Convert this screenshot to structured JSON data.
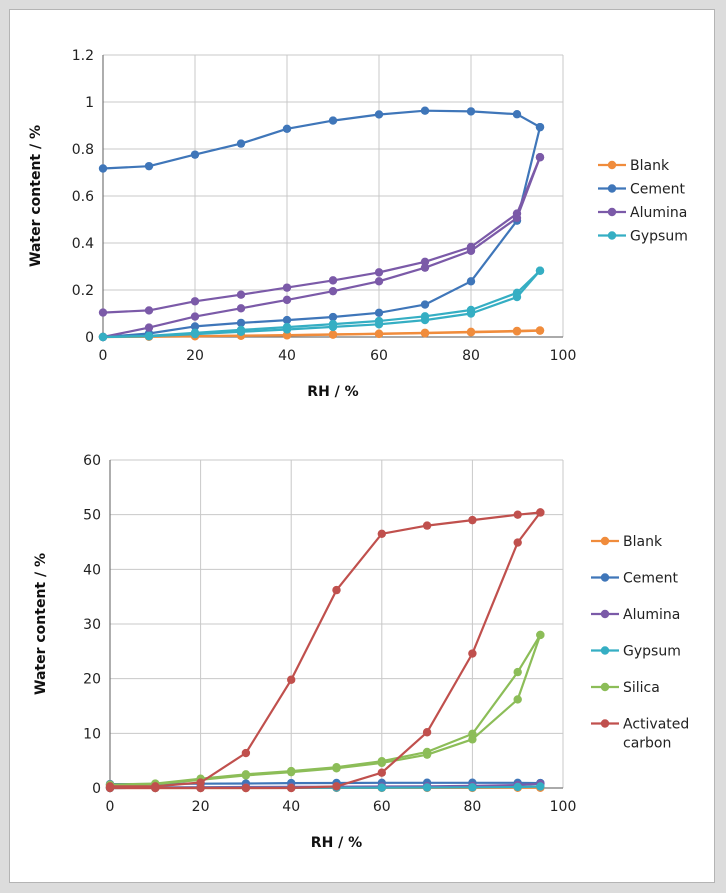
{
  "chart_data": [
    {
      "type": "line",
      "xlabel": "RH / %",
      "ylabel": "Water content / %",
      "xlim": [
        0,
        100
      ],
      "ylim": [
        0,
        1.2
      ],
      "xticks": [
        0,
        20,
        40,
        60,
        80,
        100
      ],
      "yticks": [
        0,
        0.2,
        0.4,
        0.6,
        0.8,
        1,
        1.2
      ],
      "grid": true,
      "legend_position": "right",
      "legend": [
        {
          "name": "Blank",
          "color": "#f08c3c"
        },
        {
          "name": "Cement",
          "color": "#3f76b9"
        },
        {
          "name": "Alumina",
          "color": "#7b5aa8"
        },
        {
          "name": "Gypsum",
          "color": "#35aec3"
        }
      ],
      "series": [
        {
          "legend_index": 0,
          "x": [
            0,
            10,
            20,
            30,
            40,
            50,
            60,
            70,
            80,
            90,
            95
          ],
          "values": [
            0.0,
            0.002,
            0.004,
            0.006,
            0.008,
            0.011,
            0.014,
            0.018,
            0.022,
            0.026,
            0.028
          ]
        },
        {
          "legend_index": 0,
          "x": [
            0,
            10,
            20,
            30,
            40,
            50,
            60,
            70,
            80,
            90,
            95
          ],
          "values": [
            0.0,
            0.001,
            0.003,
            0.005,
            0.007,
            0.01,
            0.013,
            0.016,
            0.02,
            0.024,
            0.027
          ]
        },
        {
          "legend_index": 1,
          "x": [
            0,
            10,
            20,
            30,
            40,
            50,
            60,
            70,
            80,
            90,
            95
          ],
          "values": [
            0.717,
            0.727,
            0.776,
            0.823,
            0.886,
            0.921,
            0.947,
            0.963,
            0.96,
            0.948,
            0.893
          ]
        },
        {
          "legend_index": 1,
          "x": [
            0,
            10,
            20,
            30,
            40,
            50,
            60,
            70,
            80,
            90,
            95
          ],
          "values": [
            0.0,
            0.015,
            0.045,
            0.06,
            0.072,
            0.085,
            0.103,
            0.138,
            0.237,
            0.495,
            0.893
          ]
        },
        {
          "legend_index": 2,
          "x": [
            0,
            10,
            20,
            30,
            40,
            50,
            60,
            70,
            80,
            90,
            95
          ],
          "values": [
            0.104,
            0.113,
            0.152,
            0.18,
            0.21,
            0.241,
            0.275,
            0.32,
            0.383,
            0.525,
            0.765
          ]
        },
        {
          "legend_index": 2,
          "x": [
            0,
            10,
            20,
            30,
            40,
            50,
            60,
            70,
            80,
            90,
            95
          ],
          "values": [
            0.0,
            0.04,
            0.087,
            0.122,
            0.158,
            0.195,
            0.237,
            0.295,
            0.367,
            0.507,
            0.765
          ]
        },
        {
          "legend_index": 3,
          "x": [
            0,
            10,
            20,
            30,
            40,
            50,
            60,
            70,
            80,
            90,
            95
          ],
          "values": [
            0.0,
            0.005,
            0.018,
            0.03,
            0.042,
            0.055,
            0.068,
            0.088,
            0.115,
            0.188,
            0.282
          ]
        },
        {
          "legend_index": 3,
          "x": [
            0,
            10,
            20,
            30,
            40,
            50,
            60,
            70,
            80,
            90,
            95
          ],
          "values": [
            0.0,
            0.003,
            0.012,
            0.022,
            0.032,
            0.043,
            0.054,
            0.072,
            0.1,
            0.17,
            0.282
          ]
        }
      ]
    },
    {
      "type": "line",
      "xlabel": "RH / %",
      "ylabel": "Water content / %",
      "xlim": [
        0,
        100
      ],
      "ylim": [
        0,
        60
      ],
      "xticks": [
        0,
        20,
        40,
        60,
        80,
        100
      ],
      "yticks": [
        0,
        10,
        20,
        30,
        40,
        50,
        60
      ],
      "grid": true,
      "legend_position": "right",
      "legend": [
        {
          "name": "Blank",
          "color": "#f08c3c"
        },
        {
          "name": "Cement",
          "color": "#3f76b9"
        },
        {
          "name": "Alumina",
          "color": "#7b5aa8"
        },
        {
          "name": "Gypsum",
          "color": "#35aec3"
        },
        {
          "name": "Silica",
          "color": "#8cbd58"
        },
        {
          "name": "Activated carbon",
          "color": "#c0504d"
        }
      ],
      "series": [
        {
          "legend_index": 0,
          "x": [
            0,
            10,
            20,
            30,
            40,
            50,
            60,
            70,
            80,
            90,
            95
          ],
          "values": [
            0.0,
            0.0,
            0.0,
            0.0,
            0.01,
            0.01,
            0.01,
            0.02,
            0.02,
            0.03,
            0.03
          ]
        },
        {
          "legend_index": 1,
          "x": [
            0,
            10,
            20,
            30,
            40,
            50,
            60,
            70,
            80,
            90,
            95
          ],
          "values": [
            0.72,
            0.73,
            0.78,
            0.82,
            0.89,
            0.92,
            0.95,
            0.96,
            0.96,
            0.95,
            0.89
          ]
        },
        {
          "legend_index": 1,
          "x": [
            0,
            10,
            20,
            30,
            40,
            50,
            60,
            70,
            80,
            90,
            95
          ],
          "values": [
            0.0,
            0.02,
            0.05,
            0.06,
            0.07,
            0.09,
            0.1,
            0.14,
            0.24,
            0.5,
            0.89
          ]
        },
        {
          "legend_index": 2,
          "x": [
            0,
            10,
            20,
            30,
            40,
            50,
            60,
            70,
            80,
            90,
            95
          ],
          "values": [
            0.1,
            0.11,
            0.15,
            0.18,
            0.21,
            0.24,
            0.28,
            0.32,
            0.38,
            0.53,
            0.77
          ]
        },
        {
          "legend_index": 3,
          "x": [
            0,
            10,
            20,
            30,
            40,
            50,
            60,
            70,
            80,
            90,
            95
          ],
          "values": [
            0.0,
            0.01,
            0.02,
            0.03,
            0.04,
            0.06,
            0.07,
            0.09,
            0.12,
            0.19,
            0.28
          ]
        },
        {
          "legend_index": 4,
          "x": [
            0,
            10,
            20,
            30,
            40,
            50,
            60,
            70,
            80,
            90,
            95
          ],
          "values": [
            0.5,
            0.7,
            1.5,
            2.3,
            2.9,
            3.6,
            4.6,
            6.1,
            8.9,
            16.2,
            28.0
          ]
        },
        {
          "legend_index": 4,
          "x": [
            0,
            10,
            20,
            30,
            40,
            50,
            60,
            70,
            80,
            90,
            95
          ],
          "values": [
            0.6,
            0.8,
            1.7,
            2.5,
            3.1,
            3.8,
            4.9,
            6.6,
            9.9,
            21.2,
            28.0
          ]
        },
        {
          "legend_index": 5,
          "x": [
            0,
            10,
            20,
            30,
            40,
            50,
            60,
            70,
            80,
            90,
            95
          ],
          "values": [
            0.3,
            0.3,
            1.0,
            6.4,
            19.8,
            36.2,
            46.5,
            48.0,
            49.0,
            50.0,
            50.4
          ]
        },
        {
          "legend_index": 5,
          "x": [
            0,
            10,
            20,
            30,
            40,
            50,
            60,
            70,
            80,
            90,
            95
          ],
          "values": [
            0.0,
            0.0,
            0.0,
            0.0,
            0.0,
            0.3,
            2.8,
            10.2,
            24.6,
            44.9,
            50.4
          ]
        }
      ]
    }
  ]
}
